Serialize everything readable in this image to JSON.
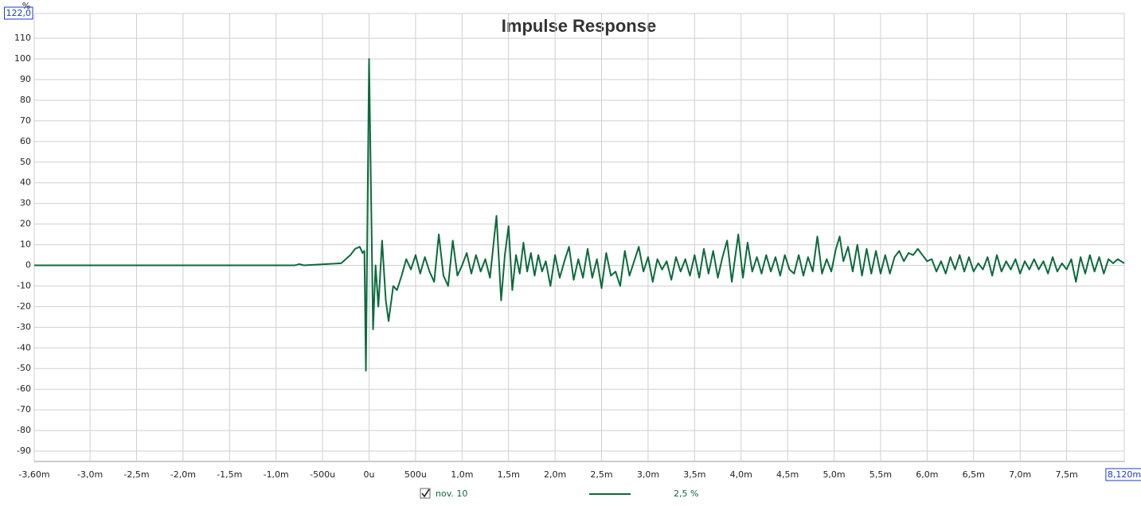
{
  "chart_data": {
    "type": "line",
    "title": "Impulse Response",
    "y_unit": "%",
    "legend_note": "2,5 %",
    "xlim": [
      -3.6,
      8.12
    ],
    "ylim": [
      -95,
      122
    ],
    "xticks": [
      {
        "value": -3.6,
        "label": "-3,60m"
      },
      {
        "value": -3.0,
        "label": "-3,0m"
      },
      {
        "value": -2.5,
        "label": "-2,5m"
      },
      {
        "value": -2.0,
        "label": "-2,0m"
      },
      {
        "value": -1.5,
        "label": "-1,5m"
      },
      {
        "value": -1.0,
        "label": "-1,0m"
      },
      {
        "value": -0.5,
        "label": "-500u"
      },
      {
        "value": 0,
        "label": "0u"
      },
      {
        "value": 0.5,
        "label": "500u"
      },
      {
        "value": 1.0,
        "label": "1,0m"
      },
      {
        "value": 1.5,
        "label": "1,5m"
      },
      {
        "value": 2.0,
        "label": "2,0m"
      },
      {
        "value": 2.5,
        "label": "2,5m"
      },
      {
        "value": 3.0,
        "label": "3,0m"
      },
      {
        "value": 3.5,
        "label": "3,5m"
      },
      {
        "value": 4.0,
        "label": "4,0m"
      },
      {
        "value": 4.5,
        "label": "4,5m"
      },
      {
        "value": 5.0,
        "label": "5,0m"
      },
      {
        "value": 5.5,
        "label": "5,5m"
      },
      {
        "value": 6.0,
        "label": "6,0m"
      },
      {
        "value": 6.5,
        "label": "6,5m"
      },
      {
        "value": 7.0,
        "label": "7,0m"
      },
      {
        "value": 7.5,
        "label": "7,5m"
      },
      {
        "value": 8.12,
        "label": "8,120m"
      }
    ],
    "yticks": [
      {
        "value": 122,
        "label": "122,0"
      },
      110,
      100,
      90,
      80,
      70,
      60,
      50,
      40,
      30,
      20,
      10,
      0,
      -10,
      -20,
      -30,
      -40,
      -50,
      -60,
      -70,
      -80,
      -90
    ],
    "grid": true,
    "x": [
      -3.6,
      -0.8,
      -0.75,
      -0.7,
      -0.3,
      -0.2,
      -0.15,
      -0.1,
      -0.07,
      -0.05,
      -0.034,
      0,
      0.043,
      0.07,
      0.1,
      0.14,
      0.18,
      0.21,
      0.26,
      0.3,
      0.35,
      0.4,
      0.45,
      0.5,
      0.55,
      0.6,
      0.65,
      0.7,
      0.75,
      0.8,
      0.85,
      0.9,
      0.95,
      1.0,
      1.05,
      1.1,
      1.15,
      1.2,
      1.25,
      1.3,
      1.37,
      1.42,
      1.46,
      1.5,
      1.54,
      1.58,
      1.62,
      1.66,
      1.7,
      1.74,
      1.78,
      1.82,
      1.86,
      1.9,
      1.95,
      2.0,
      2.05,
      2.1,
      2.15,
      2.2,
      2.25,
      2.3,
      2.35,
      2.4,
      2.45,
      2.5,
      2.55,
      2.6,
      2.65,
      2.7,
      2.75,
      2.8,
      2.85,
      2.9,
      2.95,
      3.0,
      3.05,
      3.1,
      3.15,
      3.2,
      3.25,
      3.3,
      3.35,
      3.4,
      3.45,
      3.5,
      3.55,
      3.6,
      3.65,
      3.7,
      3.75,
      3.8,
      3.85,
      3.9,
      3.97,
      4.02,
      4.07,
      4.12,
      4.17,
      4.22,
      4.27,
      4.32,
      4.37,
      4.42,
      4.47,
      4.52,
      4.57,
      4.62,
      4.67,
      4.72,
      4.77,
      4.82,
      4.87,
      4.92,
      4.97,
      5.02,
      5.06,
      5.1,
      5.15,
      5.2,
      5.25,
      5.3,
      5.35,
      5.4,
      5.45,
      5.5,
      5.55,
      5.6,
      5.65,
      5.7,
      5.75,
      5.8,
      5.85,
      5.9,
      5.95,
      6.0,
      6.05,
      6.1,
      6.15,
      6.2,
      6.25,
      6.3,
      6.35,
      6.4,
      6.45,
      6.5,
      6.55,
      6.6,
      6.65,
      6.7,
      6.75,
      6.8,
      6.85,
      6.9,
      6.95,
      7.0,
      7.05,
      7.1,
      7.15,
      7.2,
      7.25,
      7.3,
      7.35,
      7.4,
      7.45,
      7.5,
      7.55,
      7.6,
      7.65,
      7.7,
      7.75,
      7.8,
      7.85,
      7.9,
      7.95,
      8.0,
      8.05,
      8.12
    ],
    "series": [
      {
        "name": "nov. 10",
        "color": "#0b6b3b",
        "values": [
          0,
          0,
          0.6,
          0,
          1,
          5,
          8,
          9,
          6,
          7,
          -51,
          100,
          -31,
          0,
          -20,
          12,
          -17,
          -27,
          -10,
          -12,
          -5,
          3,
          -2,
          5,
          -4,
          4,
          -3,
          -8,
          15,
          -5,
          -10,
          12,
          -5,
          0,
          6,
          -4,
          5,
          -3,
          3,
          -6,
          24,
          -17,
          5,
          19,
          -12,
          5,
          -4,
          11,
          -3,
          6,
          -5,
          5,
          -3,
          2,
          -10,
          5,
          -6,
          2,
          9,
          -7,
          3,
          -6,
          8,
          -6,
          3,
          -11,
          6,
          -5,
          -3,
          -10,
          7,
          -5,
          2,
          9,
          -3,
          4,
          -8,
          3,
          -2,
          2,
          -7,
          4,
          -3,
          3,
          -5,
          5,
          -6,
          8,
          -4,
          7,
          -6,
          4,
          12,
          -8,
          15,
          -6,
          11,
          -3,
          4,
          -4,
          5,
          -3,
          4,
          -5,
          5,
          -2,
          -4,
          5,
          -5,
          4,
          -3,
          14,
          -4,
          3,
          -3,
          8,
          14,
          2,
          9,
          -3,
          10,
          -5,
          8,
          -4,
          7,
          -4,
          5,
          -4,
          4,
          7,
          2,
          6,
          5,
          8,
          5,
          2,
          3,
          -3,
          2,
          -4,
          4,
          -2,
          5,
          -3,
          4,
          -3,
          1,
          -2,
          4,
          -5,
          5,
          -3,
          2,
          -2,
          3,
          -4,
          2,
          -2,
          3,
          -2,
          2,
          -4,
          4,
          -3,
          1,
          -2,
          3,
          -8,
          4,
          -4,
          5,
          -3,
          4,
          -4,
          3,
          1,
          3,
          1
        ]
      }
    ]
  }
}
